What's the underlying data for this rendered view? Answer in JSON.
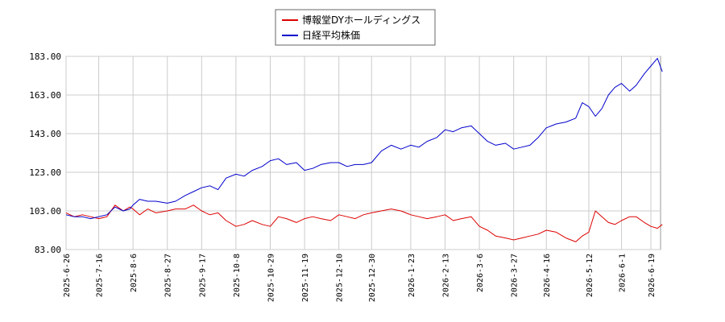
{
  "chart_data": {
    "type": "line",
    "title": "",
    "xlabel": "",
    "ylabel": "",
    "ylim": [
      83,
      183
    ],
    "y_ticks": [
      "183.00",
      "163.00",
      "143.00",
      "123.00",
      "103.00",
      "83.00"
    ],
    "x_ticks": [
      "2025-6-26",
      "2025-7-16",
      "2025-8-6",
      "2025-8-27",
      "2025-9-17",
      "2025-10-8",
      "2025-10-29",
      "2025-11-19",
      "2025-12-10",
      "2025-12-30",
      "2026-1-23",
      "2026-2-13",
      "2026-3-6",
      "2026-3-27",
      "2026-4-16",
      "2026-5-12",
      "2026-6-1",
      "2026-6-19"
    ],
    "grid": true,
    "legend_position": "top-center",
    "series": [
      {
        "name": "博報堂DYホールディングス",
        "color": "#dd0000",
        "x": [
          "2025-6-26",
          "2025-7-1",
          "2025-7-6",
          "2025-7-11",
          "2025-7-16",
          "2025-7-21",
          "2025-7-26",
          "2025-7-31",
          "2025-8-4",
          "2025-8-6",
          "2025-8-10",
          "2025-8-15",
          "2025-8-20",
          "2025-8-27",
          "2025-9-1",
          "2025-9-7",
          "2025-9-12",
          "2025-9-17",
          "2025-9-22",
          "2025-9-27",
          "2025-10-2",
          "2025-10-8",
          "2025-10-13",
          "2025-10-18",
          "2025-10-24",
          "2025-10-29",
          "2025-11-3",
          "2025-11-8",
          "2025-11-14",
          "2025-11-19",
          "2025-11-24",
          "2025-11-29",
          "2025-12-5",
          "2025-12-10",
          "2025-12-15",
          "2025-12-20",
          "2025-12-25",
          "2025-12-30",
          "2026-1-5",
          "2026-1-11",
          "2026-1-17",
          "2026-1-23",
          "2026-1-28",
          "2026-2-2",
          "2026-2-8",
          "2026-2-13",
          "2026-2-18",
          "2026-2-23",
          "2026-3-1",
          "2026-3-6",
          "2026-3-11",
          "2026-3-16",
          "2026-3-22",
          "2026-3-27",
          "2026-4-1",
          "2026-4-6",
          "2026-4-11",
          "2026-4-16",
          "2026-4-22",
          "2026-4-28",
          "2026-5-4",
          "2026-5-8",
          "2026-5-12",
          "2026-5-16",
          "2026-5-20",
          "2026-5-24",
          "2026-5-28",
          "2026-6-1",
          "2026-6-6",
          "2026-6-10",
          "2026-6-15",
          "2026-6-19",
          "2026-6-23",
          "2026-6-26"
        ],
        "values": [
          102,
          100,
          101,
          100,
          99,
          100,
          106,
          103,
          105,
          104,
          101,
          104,
          102,
          103,
          104,
          104,
          106,
          103,
          101,
          102,
          98,
          95,
          96,
          98,
          96,
          95,
          100,
          99,
          97,
          99,
          100,
          99,
          98,
          101,
          100,
          99,
          101,
          102,
          103,
          104,
          103,
          101,
          100,
          99,
          100,
          101,
          98,
          99,
          100,
          95,
          93,
          90,
          89,
          88,
          89,
          90,
          91,
          93,
          92,
          89,
          87,
          90,
          92,
          103,
          100,
          97,
          96,
          98,
          100,
          100,
          97,
          95,
          94,
          96
        ]
      },
      {
        "name": "日経平均株価",
        "color": "#0000cc",
        "x": [
          "2025-6-26",
          "2025-7-1",
          "2025-7-6",
          "2025-7-11",
          "2025-7-16",
          "2025-7-21",
          "2025-7-26",
          "2025-7-31",
          "2025-8-4",
          "2025-8-6",
          "2025-8-10",
          "2025-8-15",
          "2025-8-20",
          "2025-8-27",
          "2025-9-1",
          "2025-9-7",
          "2025-9-12",
          "2025-9-17",
          "2025-9-22",
          "2025-9-27",
          "2025-10-2",
          "2025-10-8",
          "2025-10-13",
          "2025-10-18",
          "2025-10-24",
          "2025-10-29",
          "2025-11-3",
          "2025-11-8",
          "2025-11-14",
          "2025-11-19",
          "2025-11-24",
          "2025-11-29",
          "2025-12-5",
          "2025-12-10",
          "2025-12-15",
          "2025-12-20",
          "2025-12-25",
          "2025-12-30",
          "2026-1-5",
          "2026-1-11",
          "2026-1-17",
          "2026-1-23",
          "2026-1-28",
          "2026-2-2",
          "2026-2-8",
          "2026-2-13",
          "2026-2-18",
          "2026-2-23",
          "2026-3-1",
          "2026-3-6",
          "2026-3-11",
          "2026-3-16",
          "2026-3-22",
          "2026-3-27",
          "2026-4-1",
          "2026-4-6",
          "2026-4-11",
          "2026-4-16",
          "2026-4-22",
          "2026-4-28",
          "2026-5-4",
          "2026-5-8",
          "2026-5-12",
          "2026-5-16",
          "2026-5-20",
          "2026-5-24",
          "2026-5-28",
          "2026-6-1",
          "2026-6-6",
          "2026-6-10",
          "2026-6-15",
          "2026-6-19",
          "2026-6-23",
          "2026-6-26"
        ],
        "values": [
          101,
          100,
          100,
          99,
          100,
          101,
          105,
          103,
          104,
          106,
          109,
          108,
          108,
          107,
          108,
          111,
          113,
          115,
          116,
          114,
          120,
          122,
          121,
          124,
          126,
          129,
          130,
          127,
          128,
          124,
          125,
          127,
          128,
          128,
          126,
          127,
          127,
          128,
          134,
          137,
          135,
          137,
          136,
          139,
          141,
          145,
          144,
          146,
          147,
          143,
          139,
          137,
          138,
          135,
          136,
          137,
          141,
          146,
          148,
          149,
          151,
          159,
          157,
          152,
          156,
          163,
          167,
          169,
          165,
          168,
          174,
          178,
          182,
          175
        ]
      }
    ]
  }
}
